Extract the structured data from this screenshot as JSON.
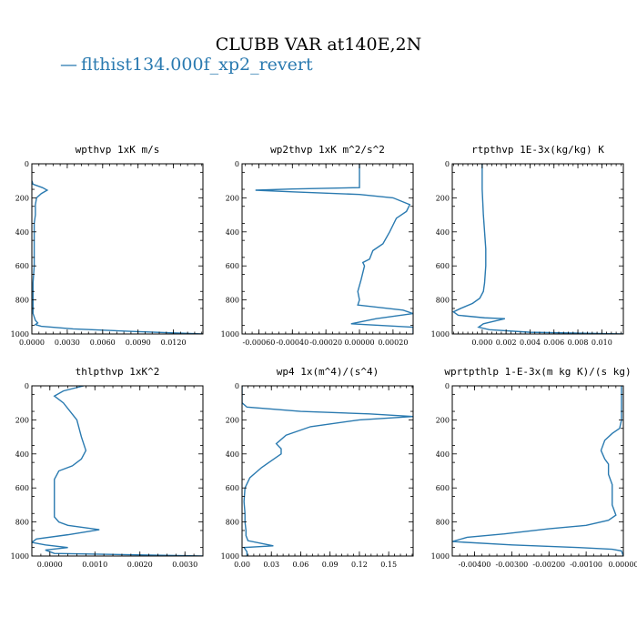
{
  "figure": {
    "title": "CLUBB VAR at140E,2N",
    "legend_label": "flthist134.000f_xp2_revert",
    "legend_symbol": "—",
    "line_color": "#2a7ab0"
  },
  "chart_data": [
    {
      "type": "line",
      "title": "wpthvp   1xK m/s",
      "xlim": [
        0,
        0.0145
      ],
      "ylim": [
        1000,
        0
      ],
      "xticks": [
        0,
        0.003,
        0.006,
        0.009,
        0.012
      ],
      "xtick_labels": [
        "0.0000",
        "0.0030",
        "0.0060",
        "0.0090",
        "0.0120"
      ],
      "yticks": [
        0,
        200,
        400,
        600,
        800,
        1000
      ],
      "ytick_labels": [
        "0",
        "200",
        "400",
        "600",
        "800",
        "1000"
      ],
      "series": [
        {
          "x": [
            0,
            0.0001,
            0.0005,
            0.0009,
            0.0013,
            0.0008,
            0.0004,
            0.0003,
            0.0003,
            0.0002,
            0.0002,
            0.0002,
            0.0002,
            0.0001,
            0.0001,
            0.0001,
            0.0001,
            0.0002,
            0.0003,
            0.0005,
            0.0003,
            0.0008,
            0.0035,
            0.0085,
            0.0145
          ],
          "y": [
            100,
            120,
            130,
            140,
            155,
            175,
            200,
            240,
            300,
            350,
            400,
            500,
            600,
            700,
            800,
            850,
            880,
            900,
            920,
            935,
            945,
            955,
            970,
            985,
            1000
          ]
        }
      ]
    },
    {
      "type": "line",
      "title": "wp2thvp   1xK m^2/s^2",
      "xlim": [
        -0.0007,
        0.00032
      ],
      "ylim": [
        1000,
        0
      ],
      "xticks": [
        -0.0006,
        -0.0004,
        -0.0002,
        0,
        0.0002
      ],
      "xtick_labels": [
        "-0.00060",
        "-0.00040",
        "-0.00020",
        "0.00000",
        "0.00020"
      ],
      "yticks": [
        0,
        200,
        400,
        600,
        800,
        1000
      ],
      "ytick_labels": [
        "0",
        "200",
        "400",
        "600",
        "800",
        "1000"
      ],
      "series": [
        {
          "x": [
            0,
            0,
            0,
            -0.0004,
            -0.00062,
            -0.0004,
            0,
            0.0002,
            0.0003,
            0.00028,
            0.00022,
            0.00018,
            0.00014,
            8e-05,
            6e-05,
            2e-05,
            3e-05,
            1e-05,
            -1e-05,
            0,
            -1e-05,
            0.00026,
            0.00032,
            0.0001,
            -5e-05,
            0.00032,
            0.00032
          ],
          "y": [
            0,
            100,
            140,
            148,
            155,
            165,
            180,
            200,
            240,
            280,
            320,
            400,
            470,
            510,
            560,
            580,
            600,
            680,
            750,
            800,
            830,
            860,
            880,
            910,
            940,
            960,
            1000
          ]
        }
      ]
    },
    {
      "type": "line",
      "title": "rtpthvp   1E-3x(kg/kg) K",
      "xlim": [
        -0.0025,
        0.0118
      ],
      "ylim": [
        1000,
        0
      ],
      "xticks": [
        0,
        0.002,
        0.004,
        0.006,
        0.008,
        0.01
      ],
      "xtick_labels": [
        "0.000",
        "0.002",
        "0.004",
        "0.006",
        "0.008",
        "0.010"
      ],
      "yticks": [
        0,
        200,
        400,
        600,
        800,
        1000
      ],
      "ytick_labels": [
        "0",
        "200",
        "400",
        "600",
        "800",
        "1000"
      ],
      "series": [
        {
          "x": [
            0,
            0,
            0.0001,
            0.0002,
            0.0003,
            0.0003,
            0.0002,
            0.0001,
            -0.0002,
            -0.0008,
            -0.0018,
            -0.0024,
            -0.002,
            0.0002,
            0.0019,
            0.0001,
            -0.0003,
            0.0006,
            0.004,
            0.0118
          ],
          "y": [
            0,
            150,
            300,
            400,
            500,
            600,
            700,
            750,
            790,
            820,
            850,
            870,
            890,
            905,
            910,
            940,
            960,
            975,
            990,
            1000
          ]
        }
      ]
    },
    {
      "type": "line",
      "title": "thlpthvp   1xK^2",
      "xlim": [
        -0.0004,
        0.0034
      ],
      "ylim": [
        1000,
        0
      ],
      "xticks": [
        0,
        0.001,
        0.002,
        0.003
      ],
      "xtick_labels": [
        "0.0000",
        "0.0010",
        "0.0020",
        "0.0030"
      ],
      "yticks": [
        0,
        200,
        400,
        600,
        800,
        1000
      ],
      "ytick_labels": [
        "0",
        "200",
        "400",
        "600",
        "800",
        "1000"
      ],
      "series": [
        {
          "x": [
            0.00075,
            0.0003,
            0.0001,
            0.0003,
            0.0006,
            0.0007,
            0.0008,
            0.0007,
            0.0005,
            0.0002,
            0.0001,
            0.0001,
            0.0001,
            0.0001,
            0.0002,
            0.0004,
            0.0011,
            0.0004,
            -0.0003,
            -0.0004,
            -0.0001,
            0.0004,
            -0.0001,
            0.0001,
            0.0035
          ],
          "y": [
            0,
            30,
            60,
            100,
            200,
            300,
            380,
            430,
            470,
            500,
            550,
            620,
            700,
            770,
            800,
            820,
            845,
            875,
            900,
            920,
            935,
            950,
            965,
            985,
            1000
          ]
        }
      ]
    },
    {
      "type": "line",
      "title": "wp4   1x(m^4)/(s^4)",
      "xlim": [
        0,
        0.175
      ],
      "ylim": [
        1000,
        0
      ],
      "xticks": [
        0,
        0.03,
        0.06,
        0.09,
        0.12,
        0.15
      ],
      "xtick_labels": [
        "0.00",
        "0.03",
        "0.06",
        "0.09",
        "0.12",
        "0.15"
      ],
      "yticks": [
        0,
        200,
        400,
        600,
        800,
        1000
      ],
      "ytick_labels": [
        "0",
        "200",
        "400",
        "600",
        "800",
        "1000"
      ],
      "series": [
        {
          "x": [
            0,
            0,
            0.005,
            0.06,
            0.13,
            0.175,
            0.12,
            0.07,
            0.045,
            0.035,
            0.04,
            0.04,
            0.03,
            0.02,
            0.008,
            0.003,
            0.002,
            0.003,
            0.003,
            0.004,
            0.004,
            0.006,
            0.032,
            0.002,
            0.005,
            0.005
          ],
          "y": [
            0,
            100,
            125,
            150,
            165,
            180,
            200,
            240,
            290,
            340,
            370,
            400,
            440,
            480,
            540,
            600,
            680,
            750,
            800,
            850,
            880,
            910,
            940,
            950,
            975,
            1000
          ]
        }
      ]
    },
    {
      "type": "line",
      "title": "wprtpthlp   1-E-3x(m kg K)/(s kg)",
      "xlim": [
        -0.0046,
        0
      ],
      "ylim": [
        1000,
        0
      ],
      "xticks": [
        -0.004,
        -0.003,
        -0.002,
        -0.001,
        0
      ],
      "xtick_labels": [
        "-0.00400",
        "-0.00300",
        "-0.00200",
        "-0.00100",
        "0.00000"
      ],
      "yticks": [
        0,
        200,
        400,
        600,
        800,
        1000
      ],
      "ytick_labels": [
        "0",
        "200",
        "400",
        "600",
        "800",
        "1000"
      ],
      "series": [
        {
          "x": [
            -5e-05,
            -5e-05,
            -5e-05,
            -0.0001,
            -0.0003,
            -0.0005,
            -0.0006,
            -0.0005,
            -0.0004,
            -0.0004,
            -0.0003,
            -0.0003,
            -0.0003,
            -0.0002,
            -0.0004,
            -0.001,
            -0.002,
            -0.0032,
            -0.0042,
            -0.0046,
            -0.003,
            -0.0012,
            -0.0003,
            -5e-05,
            0
          ],
          "y": [
            0,
            150,
            200,
            250,
            280,
            320,
            380,
            430,
            460,
            520,
            580,
            620,
            700,
            760,
            790,
            820,
            840,
            870,
            890,
            915,
            935,
            950,
            960,
            970,
            1000
          ]
        }
      ]
    }
  ]
}
